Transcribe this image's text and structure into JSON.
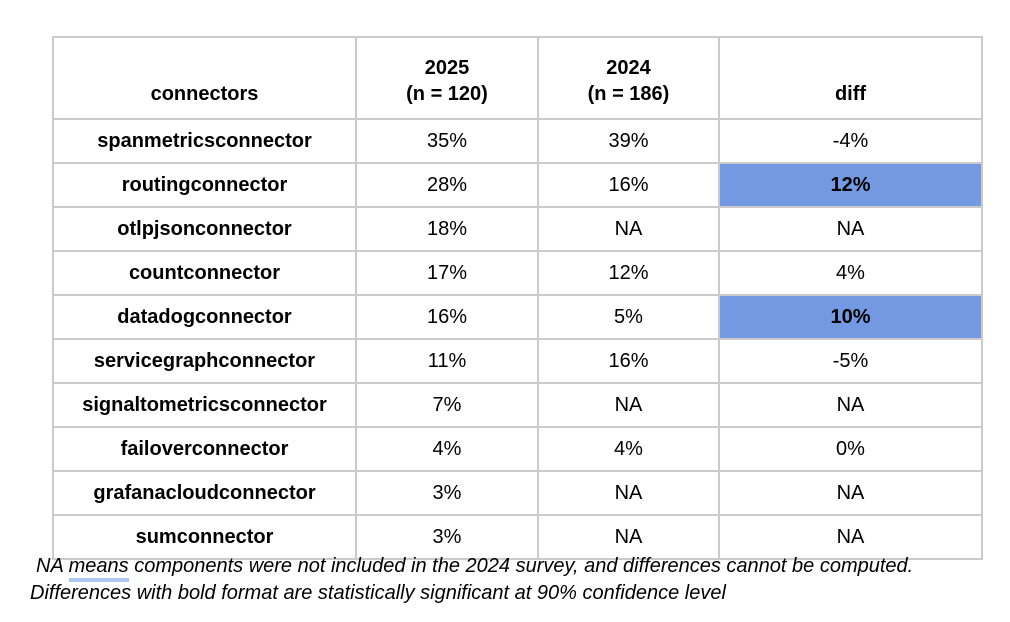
{
  "colors": {
    "background": "#ffffff",
    "table_border": "#cbcbcb",
    "highlight_blue": "#7399e3",
    "grammar_underline_blue": "#aec6f2",
    "text": "#000000"
  },
  "table": {
    "columns": [
      {
        "label": "connectors",
        "sublabel": ""
      },
      {
        "label": "2025",
        "sublabel": "(n = 120)"
      },
      {
        "label": "2024",
        "sublabel": "(n = 186)"
      },
      {
        "label": "diff",
        "sublabel": ""
      }
    ],
    "rows": [
      {
        "connector": "spanmetricsconnector",
        "y2025": "35%",
        "y2024": "39%",
        "diff": "-4%",
        "diff_highlighted": false
      },
      {
        "connector": "routingconnector",
        "y2025": "28%",
        "y2024": "16%",
        "diff": "12%",
        "diff_highlighted": true
      },
      {
        "connector": "otlpjsonconnector",
        "y2025": "18%",
        "y2024": "NA",
        "diff": "NA",
        "diff_highlighted": false
      },
      {
        "connector": "countconnector",
        "y2025": "17%",
        "y2024": "12%",
        "diff": "4%",
        "diff_highlighted": false
      },
      {
        "connector": "datadogconnector",
        "y2025": "16%",
        "y2024": "5%",
        "diff": "10%",
        "diff_highlighted": true
      },
      {
        "connector": "servicegraphconnector",
        "y2025": "11%",
        "y2024": "16%",
        "diff": "-5%",
        "diff_highlighted": false
      },
      {
        "connector": "signaltometricsconnector",
        "y2025": "7%",
        "y2024": "NA",
        "diff": "NA",
        "diff_highlighted": false
      },
      {
        "connector": "failoverconnector",
        "y2025": "4%",
        "y2024": "4%",
        "diff": "0%",
        "diff_highlighted": false
      },
      {
        "connector": "grafanacloudconnector",
        "y2025": "3%",
        "y2024": "NA",
        "diff": "NA",
        "diff_highlighted": false
      },
      {
        "connector": "sumconnector",
        "y2025": "3%",
        "y2024": "NA",
        "diff": "NA",
        "diff_highlighted": false
      }
    ]
  },
  "footnote": {
    "line1_prefix": "NA ",
    "line1_underlined": "means",
    "line1_suffix": " components were not included in the 2024 survey, and differences cannot be computed.",
    "line2": "Differences with bold format are statistically significant at 90% confidence level"
  },
  "chart_data": {
    "type": "table",
    "title": "",
    "columns": [
      "connectors",
      "2025 (n = 120)",
      "2024 (n = 186)",
      "diff"
    ],
    "rows": [
      [
        "spanmetricsconnector",
        "35%",
        "39%",
        "-4%"
      ],
      [
        "routingconnector",
        "28%",
        "16%",
        "12%"
      ],
      [
        "otlpjsonconnector",
        "18%",
        "NA",
        "NA"
      ],
      [
        "countconnector",
        "17%",
        "12%",
        "4%"
      ],
      [
        "datadogconnector",
        "16%",
        "5%",
        "10%"
      ],
      [
        "servicegraphconnector",
        "11%",
        "16%",
        "-5%"
      ],
      [
        "signaltometricsconnector",
        "7%",
        "NA",
        "NA"
      ],
      [
        "failoverconnector",
        "4%",
        "4%",
        "0%"
      ],
      [
        "grafanacloudconnector",
        "3%",
        "NA",
        "NA"
      ],
      [
        "sumconnector",
        "3%",
        "NA",
        "NA"
      ]
    ],
    "highlighted_cells": [
      {
        "row": "routingconnector",
        "column": "diff",
        "value": "12%",
        "style": "blue background, bold"
      },
      {
        "row": "datadogconnector",
        "column": "diff",
        "value": "10%",
        "style": "blue background, bold"
      }
    ],
    "annotations": [
      "NA means components were not included in the 2024 survey, and differences cannot be computed.",
      "Differences with bold format are statistically significant at 90% confidence level"
    ]
  }
}
